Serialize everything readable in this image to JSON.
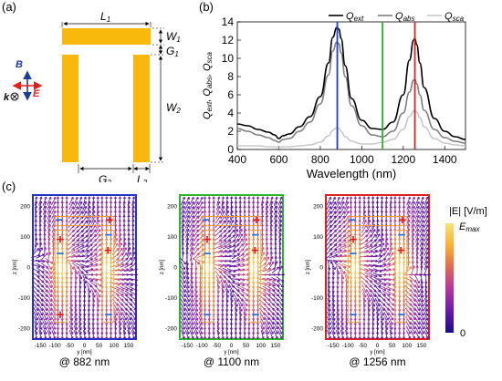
{
  "panel_a": {
    "label": "(a)",
    "dims": {
      "L1": "L",
      "L1_sub": "1",
      "W1": "W",
      "W1_sub": "1",
      "G1": "G",
      "G1_sub": "1",
      "W2": "W",
      "W2_sub": "2",
      "G2": "G",
      "G2_sub": "2",
      "L2": "L",
      "L2_sub": "2"
    },
    "field_labels": {
      "B": "B",
      "E": "E",
      "k": "k"
    },
    "colors": {
      "metal": "#F9B90C",
      "B": "#1d3f9a",
      "E": "#e0201f"
    }
  },
  "panel_b": {
    "label": "(b)",
    "chart_data": {
      "type": "line",
      "xlabel": "Wavelength (nm)",
      "ylabel_parts": [
        "Q",
        "ext",
        ", Q",
        "abs",
        ", Q",
        "sca"
      ],
      "xlim": [
        400,
        1500
      ],
      "ylim": [
        0,
        14
      ],
      "xticks": [
        400,
        600,
        800,
        1000,
        1200,
        1400
      ],
      "yticks": [
        0,
        2,
        4,
        6,
        8,
        10,
        12,
        14
      ],
      "vlines": [
        {
          "x": 882,
          "color": "#1f3fbf"
        },
        {
          "x": 1100,
          "color": "#2bb52b"
        },
        {
          "x": 1256,
          "color": "#e0201f"
        }
      ],
      "legend": [
        {
          "name": "Q",
          "sub": "ext",
          "color": "#000000"
        },
        {
          "name": "Q",
          "sub": "abs",
          "color": "#7f7f7f"
        },
        {
          "name": "Q",
          "sub": "sca",
          "color": "#c8c8c8"
        }
      ],
      "series": [
        {
          "name": "Q_ext",
          "color": "#000000",
          "x": [
            400,
            450,
            500,
            550,
            580,
            600,
            620,
            650,
            700,
            750,
            800,
            840,
            860,
            880,
            890,
            900,
            920,
            950,
            1000,
            1050,
            1100,
            1150,
            1200,
            1230,
            1250,
            1256,
            1265,
            1280,
            1300,
            1350,
            1400,
            1450,
            1500
          ],
          "y": [
            2.8,
            2.6,
            2.2,
            1.9,
            1.6,
            1.2,
            1.5,
            1.7,
            2.5,
            3.6,
            5.8,
            9.5,
            12.3,
            13.4,
            13.2,
            12.2,
            9.2,
            5.6,
            3.2,
            2.3,
            2.2,
            3.0,
            6.0,
            9.8,
            12.0,
            12.2,
            11.5,
            9.5,
            6.8,
            3.4,
            2.0,
            1.4,
            1.1
          ]
        },
        {
          "name": "Q_abs",
          "color": "#7f7f7f",
          "x": [
            400,
            450,
            500,
            550,
            580,
            600,
            620,
            650,
            700,
            750,
            800,
            840,
            860,
            880,
            890,
            900,
            920,
            950,
            1000,
            1050,
            1100,
            1150,
            1200,
            1230,
            1250,
            1256,
            1265,
            1280,
            1300,
            1350,
            1400,
            1450,
            1500
          ],
          "y": [
            2.3,
            2.0,
            1.6,
            1.3,
            1.0,
            0.8,
            1.1,
            1.2,
            2.0,
            3.0,
            5.0,
            8.2,
            10.8,
            11.8,
            11.6,
            10.6,
            8.0,
            4.8,
            2.6,
            1.6,
            1.4,
            2.0,
            4.0,
            6.3,
            7.6,
            7.7,
            7.2,
            6.0,
            4.3,
            2.2,
            1.3,
            0.9,
            0.7
          ]
        },
        {
          "name": "Q_sca",
          "color": "#c8c8c8",
          "x": [
            400,
            450,
            500,
            550,
            580,
            600,
            620,
            650,
            700,
            750,
            800,
            840,
            860,
            880,
            890,
            900,
            920,
            950,
            1000,
            1050,
            1100,
            1150,
            1200,
            1230,
            1250,
            1256,
            1265,
            1280,
            1300,
            1350,
            1400,
            1450,
            1500
          ],
          "y": [
            0.4,
            0.4,
            0.4,
            0.3,
            0.3,
            0.2,
            0.3,
            0.3,
            0.4,
            0.5,
            0.8,
            1.5,
            2.1,
            2.4,
            2.3,
            2.0,
            1.4,
            0.9,
            0.6,
            0.6,
            0.8,
            1.1,
            2.2,
            3.6,
            4.2,
            4.3,
            4.1,
            3.5,
            2.5,
            1.2,
            0.7,
            0.5,
            0.4
          ]
        }
      ]
    }
  },
  "panel_c": {
    "label": "(c)",
    "maps": [
      {
        "caption": "@ 882 nm",
        "frame_color": "#2233cc",
        "signs_top": [
          "−",
          "+"
        ],
        "signs_mid": [
          "+",
          "+"
        ],
        "signs_low": [
          "−",
          "−"
        ],
        "signs_bottom": [
          "+",
          "−"
        ]
      },
      {
        "caption": "@ 1100 nm",
        "frame_color": "#2bb52b",
        "signs_top": [
          "−",
          "+"
        ],
        "signs_mid": [
          "+",
          "+"
        ],
        "signs_low": [
          "−",
          "−"
        ],
        "signs_bottom": [
          "−",
          "−"
        ]
      },
      {
        "caption": "@ 1256 nm",
        "frame_color": "#e0201f",
        "signs_top": [
          "−",
          "+"
        ],
        "signs_mid": [
          "+",
          "+"
        ],
        "signs_low": [
          "−",
          "−"
        ],
        "signs_bottom": [
          "−",
          "−"
        ]
      }
    ],
    "axis": {
      "xlabel": "y [nm]",
      "ylabel": "z [nm]",
      "xticks": [
        "-150",
        "-100",
        "-50",
        "0",
        "50",
        "100",
        "150"
      ],
      "yticks": [
        "200",
        "100",
        "0",
        "-100",
        "-200"
      ]
    },
    "colorbar": {
      "title": "|E| [V/m]",
      "max_label": "E",
      "max_sub": "max",
      "min_label": "0",
      "colors": [
        "#1a0a8a",
        "#6b1aa8",
        "#b3369e",
        "#e06a52",
        "#f7b236",
        "#f6e27a"
      ]
    }
  }
}
